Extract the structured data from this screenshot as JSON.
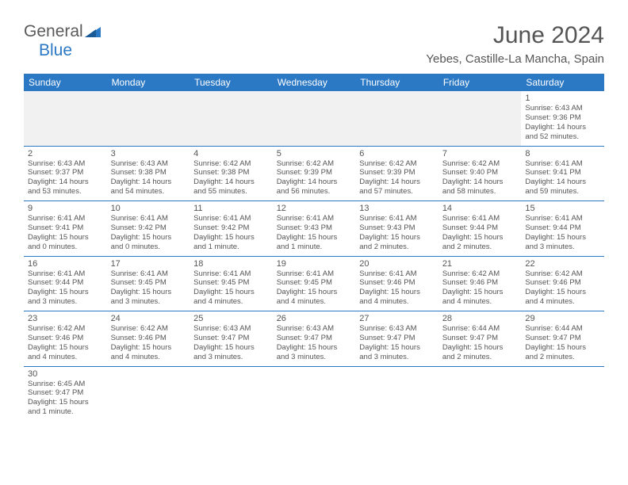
{
  "logo": {
    "text1": "General",
    "text2": "Blue"
  },
  "title": "June 2024",
  "location": "Yebes, Castille-La Mancha, Spain",
  "colors": {
    "header_bg": "#2b78c5",
    "header_text": "#ffffff",
    "text": "#555555",
    "blank_bg": "#f1f1f1",
    "rule": "#2b78c5"
  },
  "day_headers": [
    "Sunday",
    "Monday",
    "Tuesday",
    "Wednesday",
    "Thursday",
    "Friday",
    "Saturday"
  ],
  "days": {
    "1": {
      "sunrise": "6:43 AM",
      "sunset": "9:36 PM",
      "daylight": "14 hours and 52 minutes."
    },
    "2": {
      "sunrise": "6:43 AM",
      "sunset": "9:37 PM",
      "daylight": "14 hours and 53 minutes."
    },
    "3": {
      "sunrise": "6:43 AM",
      "sunset": "9:38 PM",
      "daylight": "14 hours and 54 minutes."
    },
    "4": {
      "sunrise": "6:42 AM",
      "sunset": "9:38 PM",
      "daylight": "14 hours and 55 minutes."
    },
    "5": {
      "sunrise": "6:42 AM",
      "sunset": "9:39 PM",
      "daylight": "14 hours and 56 minutes."
    },
    "6": {
      "sunrise": "6:42 AM",
      "sunset": "9:39 PM",
      "daylight": "14 hours and 57 minutes."
    },
    "7": {
      "sunrise": "6:42 AM",
      "sunset": "9:40 PM",
      "daylight": "14 hours and 58 minutes."
    },
    "8": {
      "sunrise": "6:41 AM",
      "sunset": "9:41 PM",
      "daylight": "14 hours and 59 minutes."
    },
    "9": {
      "sunrise": "6:41 AM",
      "sunset": "9:41 PM",
      "daylight": "15 hours and 0 minutes."
    },
    "10": {
      "sunrise": "6:41 AM",
      "sunset": "9:42 PM",
      "daylight": "15 hours and 0 minutes."
    },
    "11": {
      "sunrise": "6:41 AM",
      "sunset": "9:42 PM",
      "daylight": "15 hours and 1 minute."
    },
    "12": {
      "sunrise": "6:41 AM",
      "sunset": "9:43 PM",
      "daylight": "15 hours and 1 minute."
    },
    "13": {
      "sunrise": "6:41 AM",
      "sunset": "9:43 PM",
      "daylight": "15 hours and 2 minutes."
    },
    "14": {
      "sunrise": "6:41 AM",
      "sunset": "9:44 PM",
      "daylight": "15 hours and 2 minutes."
    },
    "15": {
      "sunrise": "6:41 AM",
      "sunset": "9:44 PM",
      "daylight": "15 hours and 3 minutes."
    },
    "16": {
      "sunrise": "6:41 AM",
      "sunset": "9:44 PM",
      "daylight": "15 hours and 3 minutes."
    },
    "17": {
      "sunrise": "6:41 AM",
      "sunset": "9:45 PM",
      "daylight": "15 hours and 3 minutes."
    },
    "18": {
      "sunrise": "6:41 AM",
      "sunset": "9:45 PM",
      "daylight": "15 hours and 4 minutes."
    },
    "19": {
      "sunrise": "6:41 AM",
      "sunset": "9:45 PM",
      "daylight": "15 hours and 4 minutes."
    },
    "20": {
      "sunrise": "6:41 AM",
      "sunset": "9:46 PM",
      "daylight": "15 hours and 4 minutes."
    },
    "21": {
      "sunrise": "6:42 AM",
      "sunset": "9:46 PM",
      "daylight": "15 hours and 4 minutes."
    },
    "22": {
      "sunrise": "6:42 AM",
      "sunset": "9:46 PM",
      "daylight": "15 hours and 4 minutes."
    },
    "23": {
      "sunrise": "6:42 AM",
      "sunset": "9:46 PM",
      "daylight": "15 hours and 4 minutes."
    },
    "24": {
      "sunrise": "6:42 AM",
      "sunset": "9:46 PM",
      "daylight": "15 hours and 4 minutes."
    },
    "25": {
      "sunrise": "6:43 AM",
      "sunset": "9:47 PM",
      "daylight": "15 hours and 3 minutes."
    },
    "26": {
      "sunrise": "6:43 AM",
      "sunset": "9:47 PM",
      "daylight": "15 hours and 3 minutes."
    },
    "27": {
      "sunrise": "6:43 AM",
      "sunset": "9:47 PM",
      "daylight": "15 hours and 3 minutes."
    },
    "28": {
      "sunrise": "6:44 AM",
      "sunset": "9:47 PM",
      "daylight": "15 hours and 2 minutes."
    },
    "29": {
      "sunrise": "6:44 AM",
      "sunset": "9:47 PM",
      "daylight": "15 hours and 2 minutes."
    },
    "30": {
      "sunrise": "6:45 AM",
      "sunset": "9:47 PM",
      "daylight": "15 hours and 1 minute."
    }
  },
  "labels": {
    "sunrise": "Sunrise: ",
    "sunset": "Sunset: ",
    "daylight": "Daylight: "
  },
  "grid": [
    [
      null,
      null,
      null,
      null,
      null,
      null,
      "1"
    ],
    [
      "2",
      "3",
      "4",
      "5",
      "6",
      "7",
      "8"
    ],
    [
      "9",
      "10",
      "11",
      "12",
      "13",
      "14",
      "15"
    ],
    [
      "16",
      "17",
      "18",
      "19",
      "20",
      "21",
      "22"
    ],
    [
      "23",
      "24",
      "25",
      "26",
      "27",
      "28",
      "29"
    ],
    [
      "30",
      null,
      null,
      null,
      null,
      null,
      null
    ]
  ]
}
